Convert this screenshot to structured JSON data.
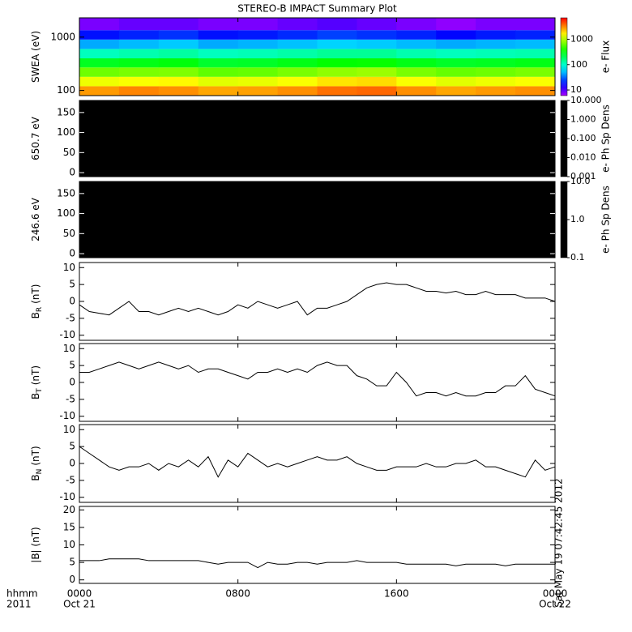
{
  "chart_data": [
    {
      "type": "heatmap",
      "title": "STEREO-B IMPACT Summary Plot",
      "ylabel": "SWEA (eV)",
      "clabel": "e- Flux",
      "time_bins": [
        0,
        2,
        4,
        6,
        8,
        10,
        12,
        14,
        16,
        18,
        20,
        22,
        24
      ],
      "energy_bins": [
        80,
        120,
        180,
        270,
        400,
        600,
        900,
        1350,
        2300
      ],
      "values": [
        [
          2800,
          1400,
          650,
          280,
          110,
          45,
          18,
          8
        ],
        [
          3200,
          1500,
          700,
          300,
          120,
          50,
          20,
          9
        ],
        [
          3000,
          1600,
          720,
          320,
          130,
          55,
          22,
          9
        ],
        [
          2600,
          1300,
          600,
          260,
          110,
          45,
          18,
          8
        ],
        [
          2700,
          1350,
          620,
          270,
          115,
          48,
          19,
          8
        ],
        [
          3000,
          1500,
          700,
          300,
          125,
          52,
          21,
          9
        ],
        [
          3600,
          1800,
          800,
          340,
          140,
          58,
          24,
          10
        ],
        [
          3800,
          1900,
          850,
          350,
          140,
          55,
          22,
          9
        ],
        [
          3000,
          1500,
          700,
          300,
          120,
          50,
          20,
          8
        ],
        [
          2600,
          1300,
          620,
          270,
          110,
          45,
          17,
          7
        ],
        [
          2800,
          1400,
          650,
          280,
          115,
          48,
          19,
          8
        ],
        [
          3000,
          1500,
          700,
          300,
          120,
          50,
          20,
          8
        ]
      ],
      "xlim": [
        0,
        24
      ],
      "xticks": [
        0,
        8,
        16,
        24
      ],
      "ylim": [
        80,
        2300
      ],
      "yticks": [
        100,
        1000
      ],
      "ylog": true,
      "clim": [
        6,
        7000
      ],
      "cticks": [
        10,
        100,
        1000
      ],
      "clog": true,
      "cmap": "rainbow"
    },
    {
      "type": "heatmap",
      "ylabel": "650.7 eV",
      "clabel": "e- Ph Sp Dens",
      "color": "#000000",
      "xlim": [
        0,
        24
      ],
      "xticks": [
        0,
        8,
        16,
        24
      ],
      "ylim": [
        -10,
        180
      ],
      "yticks": [
        0,
        50,
        100,
        150
      ],
      "clim": [
        0.001,
        10
      ],
      "clog": true,
      "cticks": [
        0.001,
        {
          "value": 0.01,
          "label": "0.010"
        },
        {
          "value": 0.1,
          "label": "0.100"
        },
        {
          "value": 1,
          "label": "1.000"
        },
        {
          "value": 10,
          "label": "10.000"
        }
      ]
    },
    {
      "type": "heatmap",
      "ylabel": "246.6 eV",
      "clabel": "e- Ph Sp Dens",
      "color": "#000000",
      "xlim": [
        0,
        24
      ],
      "xticks": [
        0,
        8,
        16,
        24
      ],
      "ylim": [
        -10,
        180
      ],
      "yticks": [
        0,
        50,
        100,
        150
      ],
      "clim": [
        0.1,
        10
      ],
      "clog": true,
      "cticks": [
        0.1,
        {
          "value": 1,
          "label": "1.0"
        },
        {
          "value": 10,
          "label": "10.0"
        }
      ]
    },
    {
      "type": "line",
      "ylabel": "B",
      "ylabel_sub": "R",
      "ylabel_unit": "(nT)",
      "color": "#000000",
      "xlim": [
        0,
        24
      ],
      "xticks": [
        0,
        8,
        16,
        24
      ],
      "ylim": [
        -11.5,
        11.5
      ],
      "yticks": [
        -10,
        -5,
        0,
        5,
        10
      ],
      "x": [
        0,
        0.5,
        1,
        1.5,
        2,
        2.5,
        3,
        3.5,
        4,
        4.5,
        5,
        5.5,
        6,
        6.5,
        7,
        7.5,
        8,
        8.5,
        9,
        9.5,
        10,
        10.5,
        11,
        11.5,
        12,
        12.5,
        13,
        13.5,
        14,
        14.5,
        15,
        15.5,
        16,
        16.5,
        17,
        17.5,
        18,
        18.5,
        19,
        19.5,
        20,
        20.5,
        21,
        21.5,
        22,
        22.5,
        23,
        23.5,
        24
      ],
      "values": [
        -1,
        -3,
        -3.5,
        -4,
        -2,
        0,
        -3,
        -3,
        -4,
        -3,
        -2,
        -3,
        -2,
        -3,
        -4,
        -3,
        -1,
        -2,
        0,
        -1,
        -2,
        -1,
        0,
        -4,
        -2,
        -2,
        -1,
        0,
        2,
        4,
        5,
        5.5,
        5,
        5,
        4,
        3,
        3,
        2.5,
        3,
        2,
        2,
        3,
        2,
        2,
        2,
        1,
        1,
        1,
        0
      ]
    },
    {
      "type": "line",
      "ylabel": "B",
      "ylabel_sub": "T",
      "ylabel_unit": "(nT)",
      "color": "#000000",
      "xlim": [
        0,
        24
      ],
      "xticks": [
        0,
        8,
        16,
        24
      ],
      "ylim": [
        -11.5,
        11.5
      ],
      "yticks": [
        -10,
        -5,
        0,
        5,
        10
      ],
      "x": [
        0,
        0.5,
        1,
        1.5,
        2,
        2.5,
        3,
        3.5,
        4,
        4.5,
        5,
        5.5,
        6,
        6.5,
        7,
        7.5,
        8,
        8.5,
        9,
        9.5,
        10,
        10.5,
        11,
        11.5,
        12,
        12.5,
        13,
        13.5,
        14,
        14.5,
        15,
        15.5,
        16,
        16.5,
        17,
        17.5,
        18,
        18.5,
        19,
        19.5,
        20,
        20.5,
        21,
        21.5,
        22,
        22.5,
        23,
        23.5,
        24
      ],
      "values": [
        3,
        3,
        4,
        5,
        6,
        5,
        4,
        5,
        6,
        5,
        4,
        5,
        3,
        4,
        4,
        3,
        2,
        1,
        3,
        3,
        4,
        3,
        4,
        3,
        5,
        6,
        5,
        5,
        2,
        1,
        -1,
        -1,
        3,
        0,
        -4,
        -3,
        -3,
        -4,
        -3,
        -4,
        -4,
        -3,
        -3,
        -1,
        -1,
        2,
        -2,
        -3,
        -4
      ]
    },
    {
      "type": "line",
      "ylabel": "B",
      "ylabel_sub": "N",
      "ylabel_unit": "(nT)",
      "color": "#000000",
      "xlim": [
        0,
        24
      ],
      "xticks": [
        0,
        8,
        16,
        24
      ],
      "ylim": [
        -11.5,
        11.5
      ],
      "yticks": [
        -10,
        -5,
        0,
        5,
        10
      ],
      "x": [
        0,
        0.5,
        1,
        1.5,
        2,
        2.5,
        3,
        3.5,
        4,
        4.5,
        5,
        5.5,
        6,
        6.5,
        7,
        7.5,
        8,
        8.5,
        9,
        9.5,
        10,
        10.5,
        11,
        11.5,
        12,
        12.5,
        13,
        13.5,
        14,
        14.5,
        15,
        15.5,
        16,
        16.5,
        17,
        17.5,
        18,
        18.5,
        19,
        19.5,
        20,
        20.5,
        21,
        21.5,
        22,
        22.5,
        23,
        23.5,
        24
      ],
      "values": [
        5,
        3,
        1,
        -1,
        -2,
        -1,
        -1,
        0,
        -2,
        0,
        -1,
        1,
        -1,
        2,
        -4,
        1,
        -1,
        3,
        1,
        -1,
        0,
        -1,
        0,
        1,
        2,
        1,
        1,
        2,
        0,
        -1,
        -2,
        -2,
        -1,
        -1,
        -1,
        0,
        -1,
        -1,
        0,
        0,
        1,
        -1,
        -1,
        -2,
        -3,
        -4,
        1,
        -2,
        -1
      ]
    },
    {
      "type": "line",
      "ylabel": "|B| (nT)",
      "color": "#000000",
      "timestamp": "Sat May 19 07:42:45 2012",
      "xlabel": "hhmm",
      "year_label": "2011",
      "date_labels": [
        {
          "value": 0,
          "label": "Oct 21"
        },
        {
          "value": 24,
          "label": "Oct 22"
        }
      ],
      "xlim": [
        0,
        24
      ],
      "xticks": [
        {
          "value": 0,
          "label": "0000"
        },
        {
          "value": 8,
          "label": "0800"
        },
        {
          "value": 16,
          "label": "1600"
        },
        {
          "value": 24,
          "label": "0000"
        }
      ],
      "ylim": [
        -1,
        21
      ],
      "yticks": [
        0,
        5,
        10,
        15,
        20
      ],
      "x": [
        0,
        0.5,
        1,
        1.5,
        2,
        2.5,
        3,
        3.5,
        4,
        4.5,
        5,
        5.5,
        6,
        6.5,
        7,
        7.5,
        8,
        8.5,
        9,
        9.5,
        10,
        10.5,
        11,
        11.5,
        12,
        12.5,
        13,
        13.5,
        14,
        14.5,
        15,
        15.5,
        16,
        16.5,
        17,
        17.5,
        18,
        18.5,
        19,
        19.5,
        20,
        20.5,
        21,
        21.5,
        22,
        22.5,
        23,
        23.5,
        24
      ],
      "values": [
        5.5,
        5.5,
        5.5,
        6,
        6,
        6,
        6,
        5.5,
        5.5,
        5.5,
        5.5,
        5.5,
        5.5,
        5,
        4.5,
        5,
        5,
        5,
        3.5,
        5,
        4.5,
        4.5,
        5,
        5,
        4.5,
        5,
        5,
        5,
        5.5,
        5,
        5,
        5,
        5,
        4.5,
        4.5,
        4.5,
        4.5,
        4.5,
        4,
        4.5,
        4.5,
        4.5,
        4.5,
        4,
        4.5,
        4.5,
        4.5,
        4.5,
        4.5
      ]
    }
  ]
}
